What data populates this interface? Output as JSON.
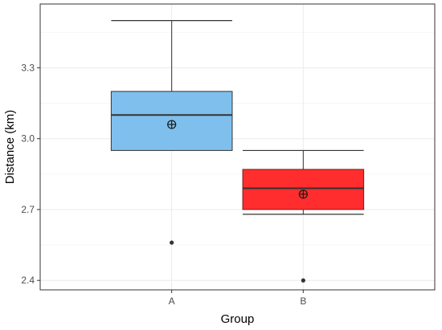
{
  "chart_data": {
    "type": "boxplot",
    "title": "",
    "xlabel": "Group",
    "ylabel": "Distance (km)",
    "ylim": [
      2.36,
      3.57
    ],
    "yticks": [
      2.4,
      2.7,
      3.0,
      3.3
    ],
    "ytick_labels": [
      "2.4",
      "2.7",
      "3.0",
      "3.3"
    ],
    "grid": true,
    "legend": "none",
    "categories": [
      "A",
      "B"
    ],
    "boxes": [
      {
        "category": "A",
        "whisker_low": 2.95,
        "q1": 2.95,
        "median": 3.1,
        "q3": 3.2,
        "whisker_high": 3.5,
        "mean": 3.06,
        "outliers": [
          2.56
        ],
        "fill": "#7fbfee",
        "stroke": "#333333"
      },
      {
        "category": "B",
        "whisker_low": 2.68,
        "q1": 2.7,
        "median": 2.79,
        "q3": 2.87,
        "whisker_high": 2.95,
        "mean": 2.765,
        "outliers": [
          2.4
        ],
        "fill": "#ff2d2d",
        "stroke": "#7a2020"
      }
    ]
  }
}
